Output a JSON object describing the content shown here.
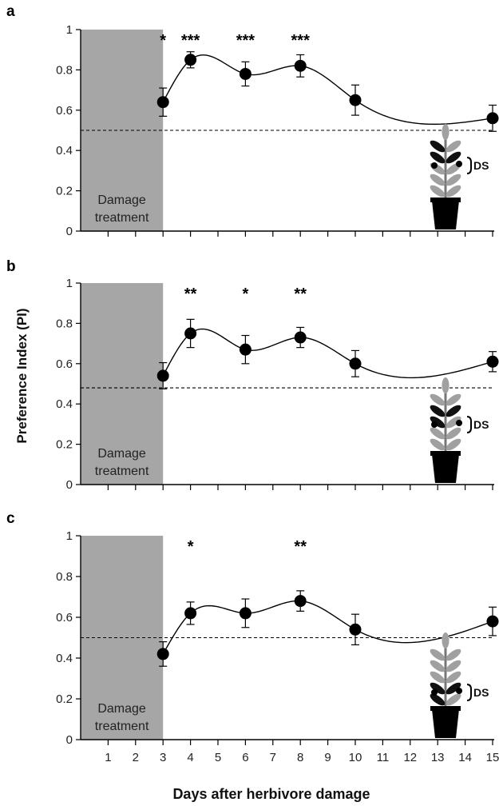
{
  "figure": {
    "ylabel": "Preference Index (PI)",
    "xlabel": "Days after herbivore damage",
    "shaded_label_line1": "Damage",
    "shaded_label_line2": "treatment",
    "plant_icon_label": "DS",
    "colors": {
      "shade": "#a6a6a6",
      "marker": "#000000",
      "line": "#000000",
      "plant_leaf": "#a0a0a0",
      "plant_leaf_dark": "#111111",
      "pot": "#000000"
    },
    "icons": [
      "plant-icon"
    ]
  },
  "chart_data": [
    {
      "panel": "a",
      "type": "line",
      "x_ticks": [
        1,
        2,
        3,
        4,
        5,
        6,
        7,
        8,
        9,
        10,
        11,
        12,
        13,
        14,
        15
      ],
      "y_ticks": [
        "0",
        "0.2",
        "0.4",
        "0.6",
        "0.8",
        "1"
      ],
      "xlim": [
        0,
        15
      ],
      "ylim": [
        0,
        1
      ],
      "shaded_region_x": [
        0,
        3
      ],
      "reference_line_y": 0.5,
      "series": [
        {
          "x": [
            3,
            4,
            6,
            8,
            10,
            15
          ],
          "y": [
            0.64,
            0.85,
            0.78,
            0.82,
            0.65,
            0.56
          ],
          "error": [
            0.07,
            0.04,
            0.06,
            0.055,
            0.075,
            0.065
          ]
        }
      ],
      "significance": [
        {
          "x": 3,
          "label": "*"
        },
        {
          "x": 4,
          "label": "***"
        },
        {
          "x": 6,
          "label": "***"
        },
        {
          "x": 8,
          "label": "***"
        }
      ],
      "plant_variant": "top"
    },
    {
      "panel": "b",
      "type": "line",
      "x_ticks": [
        1,
        2,
        3,
        4,
        5,
        6,
        7,
        8,
        9,
        10,
        11,
        12,
        13,
        14,
        15
      ],
      "y_ticks": [
        "0",
        "0.2",
        "0.4",
        "0.6",
        "0.8",
        "1"
      ],
      "xlim": [
        0,
        15
      ],
      "ylim": [
        0,
        1
      ],
      "shaded_region_x": [
        0,
        3
      ],
      "reference_line_y": 0.48,
      "series": [
        {
          "x": [
            3,
            4,
            6,
            8,
            10,
            15
          ],
          "y": [
            0.54,
            0.75,
            0.67,
            0.73,
            0.6,
            0.61
          ],
          "error": [
            0.065,
            0.07,
            0.07,
            0.05,
            0.065,
            0.05
          ]
        }
      ],
      "significance": [
        {
          "x": 4,
          "label": "**"
        },
        {
          "x": 6,
          "label": "*"
        },
        {
          "x": 8,
          "label": "**"
        }
      ],
      "plant_variant": "middle"
    },
    {
      "panel": "c",
      "type": "line",
      "x_ticks": [
        1,
        2,
        3,
        4,
        5,
        6,
        7,
        8,
        9,
        10,
        11,
        12,
        13,
        14,
        15
      ],
      "y_ticks": [
        "0",
        "0.2",
        "0.4",
        "0.6",
        "0.8",
        "1"
      ],
      "xlim": [
        0,
        15
      ],
      "ylim": [
        0,
        1
      ],
      "shaded_region_x": [
        0,
        3
      ],
      "reference_line_y": 0.5,
      "series": [
        {
          "x": [
            3,
            4,
            6,
            8,
            10,
            15
          ],
          "y": [
            0.42,
            0.62,
            0.62,
            0.68,
            0.54,
            0.58
          ],
          "error": [
            0.06,
            0.055,
            0.07,
            0.05,
            0.075,
            0.07
          ]
        }
      ],
      "significance": [
        {
          "x": 4,
          "label": "*"
        },
        {
          "x": 8,
          "label": "**"
        }
      ],
      "plant_variant": "bottom"
    }
  ]
}
